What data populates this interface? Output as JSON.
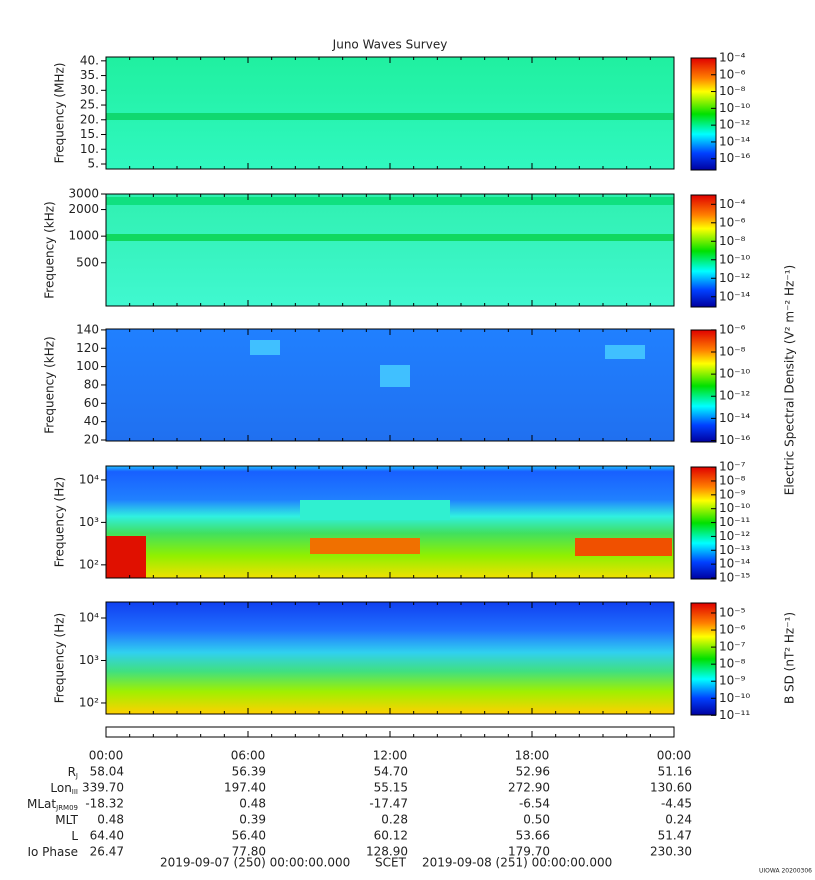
{
  "title": "Juno Waves Survey",
  "panels": [
    {
      "ylabel": "Frequency (MHz)",
      "yscale": "linear",
      "ylim": [
        3.3,
        41.3
      ],
      "yticks": [
        {
          "value": 5,
          "label": "5."
        },
        {
          "value": 10,
          "label": "10."
        },
        {
          "value": 15,
          "label": "15."
        },
        {
          "value": 20,
          "label": "20."
        },
        {
          "value": 25,
          "label": "25."
        },
        {
          "value": 30,
          "label": "30."
        },
        {
          "value": 35,
          "label": "35."
        },
        {
          "value": 40,
          "label": "40."
        }
      ],
      "clim": [
        6e-18,
        0.00013
      ],
      "cticks": [
        {
          "value": 0.0001,
          "label": "10⁻⁴"
        },
        {
          "value": 1e-06,
          "label": "10⁻⁶"
        },
        {
          "value": 1e-08,
          "label": "10⁻⁸"
        },
        {
          "value": 1e-10,
          "label": "10⁻¹⁰"
        },
        {
          "value": 1e-12,
          "label": "10⁻¹²"
        },
        {
          "value": 1e-14,
          "label": "10⁻¹⁴"
        },
        {
          "value": 1e-16,
          "label": "10⁻¹⁶"
        }
      ]
    },
    {
      "ylabel": "Frequency (kHz)",
      "yscale": "log",
      "ylim": [
        162,
        3000
      ],
      "yticks": [
        500,
        1000,
        2000,
        3000
      ],
      "clim": [
        1e-15,
        0.0013
      ],
      "cticks": [
        {
          "value": 0.0001,
          "label": "10⁻⁴"
        },
        {
          "value": 1e-06,
          "label": "10⁻⁶"
        },
        {
          "value": 1e-08,
          "label": "10⁻⁸"
        },
        {
          "value": 1e-10,
          "label": "10⁻¹⁰"
        },
        {
          "value": 1e-12,
          "label": "10⁻¹²"
        },
        {
          "value": 1e-14,
          "label": "10⁻¹⁴"
        }
      ]
    },
    {
      "ylabel": "Frequency (kHz)",
      "yscale": "linear",
      "ylim": [
        18.9,
        141
      ],
      "yticks": [
        20,
        40,
        60,
        80,
        100,
        120,
        140
      ],
      "clim": [
        9e-17,
        1.2e-06
      ],
      "cticks": [
        {
          "value": 1e-06,
          "label": "10⁻⁶"
        },
        {
          "value": 1e-08,
          "label": "10⁻⁸"
        },
        {
          "value": 1e-10,
          "label": "10⁻¹⁰"
        },
        {
          "value": 1e-12,
          "label": "10⁻¹²"
        },
        {
          "value": 1e-14,
          "label": "10⁻¹⁴"
        },
        {
          "value": 1e-16,
          "label": "10⁻¹⁶"
        }
      ]
    },
    {
      "ylabel": "Frequency (Hz)",
      "yscale": "log",
      "ylim": [
        49,
        21300
      ],
      "yticks": [
        {
          "value": 100,
          "label": "10²"
        },
        {
          "value": 1000,
          "label": "10³"
        },
        {
          "value": 10000,
          "label": "10⁴"
        }
      ],
      "clim": [
        1e-15,
        1.2e-07
      ],
      "cticks": [
        {
          "value": 1e-07,
          "label": "10⁻⁷"
        },
        {
          "value": 1e-08,
          "label": "10⁻⁸"
        },
        {
          "value": 1e-09,
          "label": "10⁻⁹"
        },
        {
          "value": 1e-10,
          "label": "10⁻¹⁰"
        },
        {
          "value": 1e-11,
          "label": "10⁻¹¹"
        },
        {
          "value": 1e-12,
          "label": "10⁻¹²"
        },
        {
          "value": 1e-13,
          "label": "10⁻¹³"
        },
        {
          "value": 1e-14,
          "label": "10⁻¹⁴"
        },
        {
          "value": 1e-15,
          "label": "10⁻¹⁵"
        }
      ]
    },
    {
      "ylabel": "Frequency (Hz)",
      "yscale": "log",
      "ylim": [
        55,
        23800
      ],
      "yticks": [
        {
          "value": 100,
          "label": "10²"
        },
        {
          "value": 1000,
          "label": "10³"
        },
        {
          "value": 10000,
          "label": "10⁴"
        }
      ],
      "clim": [
        1.2e-11,
        4.4e-05
      ],
      "cticks": [
        {
          "value": 1e-05,
          "label": "10⁻⁵"
        },
        {
          "value": 1e-06,
          "label": "10⁻⁶"
        },
        {
          "value": 1e-07,
          "label": "10⁻⁷"
        },
        {
          "value": 1e-08,
          "label": "10⁻⁸"
        },
        {
          "value": 1e-09,
          "label": "10⁻⁹"
        },
        {
          "value": 1e-10,
          "label": "10⁻¹⁰"
        },
        {
          "value": 1e-11,
          "label": "10⁻¹¹"
        }
      ]
    }
  ],
  "colorbar_titles": [
    "Electric Spectral Density (V² m⁻² Hz⁻¹)",
    "B SD (nT² Hz⁻¹)"
  ],
  "times": [
    "00:00",
    "06:00",
    "12:00",
    "18:00",
    "00:00"
  ],
  "ephemeris": [
    {
      "name": "R",
      "sub": "J",
      "values": [
        "58.04",
        "56.39",
        "54.70",
        "52.96",
        "51.16"
      ]
    },
    {
      "name": "Lon",
      "sub": "III",
      "values": [
        "339.70",
        "197.40",
        "55.15",
        "272.90",
        "130.60"
      ]
    },
    {
      "name": "MLat",
      "sub": "JRM09",
      "values": [
        "-18.32",
        "0.48",
        "-17.47",
        "-6.54",
        "-4.45"
      ]
    },
    {
      "name": "MLT",
      "values": [
        "0.48",
        "0.39",
        "0.28",
        "0.50",
        "0.24"
      ]
    },
    {
      "name": "L",
      "values": [
        "64.40",
        "56.40",
        "60.12",
        "53.66",
        "51.47"
      ]
    },
    {
      "name": "Io Phase",
      "values": [
        "26.47",
        "77.80",
        "128.90",
        "179.70",
        "230.30"
      ]
    }
  ],
  "footer": {
    "start": "2019-09-07 (250) 00:00:00.000",
    "axis": "SCET",
    "end": "2019-09-08 (251) 00:00:00.000"
  },
  "stamp": "UIOWA 20200306"
}
